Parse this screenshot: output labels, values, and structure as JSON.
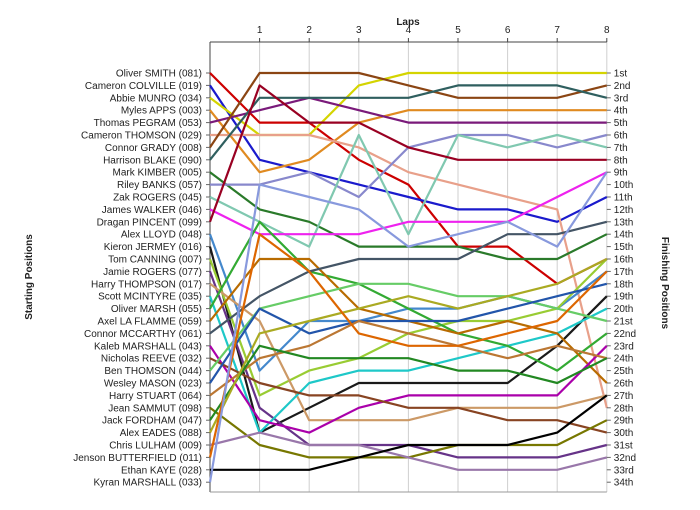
{
  "chart_data": {
    "type": "line",
    "xlabel": "Laps",
    "left_axis_label": "Starting Positions",
    "right_axis_label": "Finishing Positions",
    "laps": [
      1,
      2,
      3,
      4,
      5,
      6,
      7,
      8
    ],
    "finishing_labels": [
      "1st",
      "2nd",
      "3rd",
      "4th",
      "5th",
      "6th",
      "7th",
      "8th",
      "9th",
      "10th",
      "11th",
      "12th",
      "13th",
      "14th",
      "15th",
      "16th",
      "17th",
      "18th",
      "19th",
      "20th",
      "21st",
      "22nd",
      "23rd",
      "24th",
      "25th",
      "26th",
      "27th",
      "28th",
      "29th",
      "30th",
      "31st",
      "32nd",
      "33rd",
      "34th"
    ],
    "grid": true,
    "series": [
      {
        "name": "Oliver SMITH (081)",
        "color": "#cc0000",
        "positions": [
          1,
          5,
          5,
          8,
          10,
          15,
          15,
          18,
          16
        ]
      },
      {
        "name": "Cameron COLVILLE (019)",
        "color": "#1a1acc",
        "positions": [
          2,
          8,
          9,
          10,
          11,
          12,
          12,
          13,
          11
        ]
      },
      {
        "name": "Abbie MUNRO (034)",
        "color": "#d4d400",
        "positions": [
          3,
          6,
          6,
          2,
          1,
          1,
          1,
          1,
          1
        ]
      },
      {
        "name": "Myles APPS (003)",
        "color": "#e08a20",
        "positions": [
          4,
          9,
          8,
          5,
          4,
          4,
          4,
          4,
          4
        ]
      },
      {
        "name": "Thomas PEGRAM (053)",
        "color": "#7a1a7a",
        "positions": [
          5,
          4,
          3,
          4,
          5,
          5,
          5,
          5,
          5
        ]
      },
      {
        "name": "Cameron THOMSON (029)",
        "color": "#e8a08a",
        "positions": [
          6,
          6,
          6,
          7,
          9,
          10,
          11,
          12,
          28
        ]
      },
      {
        "name": "Connor GRADY (008)",
        "color": "#8b4513",
        "positions": [
          7,
          1,
          1,
          1,
          2,
          3,
          3,
          3,
          2
        ]
      },
      {
        "name": "Harrison BLAKE (090)",
        "color": "#2f5f5f",
        "positions": [
          8,
          3,
          3,
          3,
          3,
          2,
          2,
          2,
          3
        ]
      },
      {
        "name": "Mark KIMBER (005)",
        "color": "#2a7a2a",
        "positions": [
          9,
          12,
          13,
          15,
          15,
          15,
          16,
          16,
          14
        ]
      },
      {
        "name": "Riley BANKS (057)",
        "color": "#8888cc",
        "positions": [
          10,
          10,
          9,
          11,
          7,
          6,
          6,
          7,
          6
        ]
      },
      {
        "name": "Zak ROGERS (045)",
        "color": "#80c8b0",
        "positions": [
          11,
          13,
          15,
          6,
          14,
          6,
          7,
          6,
          7
        ]
      },
      {
        "name": "James WALKER (046)",
        "color": "#ee22ee",
        "positions": [
          12,
          14,
          14,
          14,
          13,
          13,
          13,
          11,
          9
        ]
      },
      {
        "name": "Dragan PINCENT (099)",
        "color": "#990022",
        "positions": [
          13,
          2,
          5,
          5,
          7,
          8,
          8,
          8,
          8
        ]
      },
      {
        "name": "Alex LLOYD (048)",
        "color": "#4488cc",
        "positions": [
          14,
          25,
          21,
          21,
          20,
          20,
          19,
          20,
          17
        ]
      },
      {
        "name": "Kieron JERMEY (016)",
        "color": "#1a1a1a",
        "positions": [
          15,
          30,
          28,
          26,
          26,
          26,
          26,
          23,
          19
        ]
      },
      {
        "name": "Tom CANNING (007)",
        "color": "#99cc33",
        "positions": [
          16,
          27,
          25,
          24,
          22,
          21,
          21,
          20,
          16
        ]
      },
      {
        "name": "Jamie ROGERS (077)",
        "color": "#663388",
        "positions": [
          17,
          28,
          31,
          31,
          31,
          32,
          32,
          32,
          31
        ]
      },
      {
        "name": "Harry THOMPSON (017)",
        "color": "#cc9966",
        "positions": [
          18,
          21,
          29,
          29,
          29,
          28,
          28,
          28,
          27
        ]
      },
      {
        "name": "Scott MCINTYRE (035)",
        "color": "#1ec8c8",
        "positions": [
          19,
          30,
          26,
          25,
          25,
          24,
          23,
          22,
          20
        ]
      },
      {
        "name": "Oliver MARSH (055)",
        "color": "#33aa33",
        "positions": [
          20,
          13,
          17,
          18,
          20,
          22,
          23,
          25,
          22
        ]
      },
      {
        "name": "Axel LA FLAMME (059)",
        "color": "#b86b00",
        "positions": [
          21,
          16,
          16,
          20,
          21,
          22,
          21,
          22,
          26
        ]
      },
      {
        "name": "Connor MCCARTHY (061)",
        "color": "#445566",
        "positions": [
          22,
          19,
          17,
          16,
          16,
          16,
          14,
          14,
          13
        ]
      },
      {
        "name": "Kaleb MARSHALL (043)",
        "color": "#aa00aa",
        "positions": [
          23,
          29,
          30,
          28,
          27,
          27,
          27,
          27,
          23
        ]
      },
      {
        "name": "Nicholas REEVE (032)",
        "color": "#884422",
        "positions": [
          24,
          26,
          27,
          27,
          28,
          28,
          29,
          29,
          30
        ]
      },
      {
        "name": "Ben THOMSON (044)",
        "color": "#66cc66",
        "positions": [
          25,
          20,
          19,
          18,
          18,
          19,
          19,
          20,
          21
        ]
      },
      {
        "name": "Wesley MASON (023)",
        "color": "#2255aa",
        "positions": [
          26,
          20,
          22,
          21,
          21,
          21,
          20,
          19,
          18
        ]
      },
      {
        "name": "Harry STUART (064)",
        "color": "#bb7733",
        "positions": [
          27,
          24,
          23,
          21,
          22,
          23,
          24,
          23,
          24
        ]
      },
      {
        "name": "Jean SAMMUT (098)",
        "color": "#777700",
        "positions": [
          28,
          31,
          32,
          32,
          32,
          31,
          31,
          31,
          29
        ]
      },
      {
        "name": "Jack FORDHAM (047)",
        "color": "#228822",
        "positions": [
          29,
          23,
          24,
          24,
          24,
          25,
          25,
          26,
          24
        ]
      },
      {
        "name": "Alex EADES (088)",
        "color": "#aaaa22",
        "positions": [
          30,
          22,
          21,
          20,
          19,
          20,
          19,
          18,
          16
        ]
      },
      {
        "name": "Chris LULHAM (009)",
        "color": "#9977aa",
        "positions": [
          31,
          30,
          31,
          31,
          32,
          33,
          33,
          33,
          32
        ]
      },
      {
        "name": "Jenson BUTTERFIELD (011)",
        "color": "#dd6600",
        "positions": [
          32,
          14,
          17,
          22,
          23,
          23,
          22,
          21,
          17
        ]
      },
      {
        "name": "Ethan KAYE (028)",
        "color": "#000000",
        "positions": [
          33,
          33,
          33,
          32,
          31,
          31,
          31,
          30,
          27
        ]
      },
      {
        "name": "Kyran MARSHALL (033)",
        "color": "#8899dd",
        "positions": [
          34,
          10,
          11,
          12,
          15,
          14,
          13,
          15,
          9
        ]
      }
    ]
  }
}
